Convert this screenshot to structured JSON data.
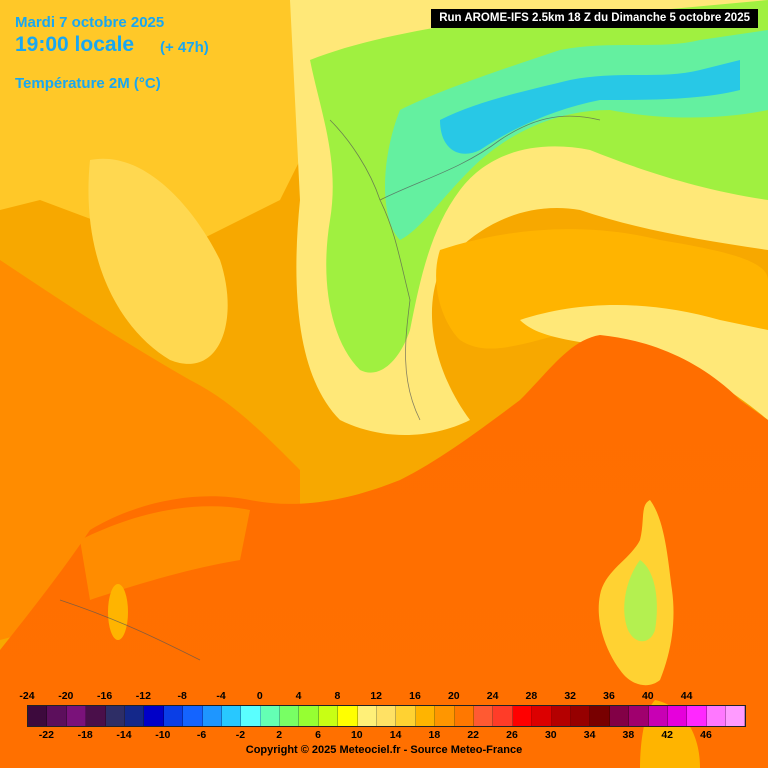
{
  "header": {
    "date": "Mardi 7 octobre 2025",
    "local_time": "19:00 locale",
    "lead_time": "(+ 47h)",
    "parameter": "Température 2M (°C)",
    "run_info": "Run AROME-IFS 2.5km 18 Z du Dimanche 5 octobre 2025"
  },
  "legend": {
    "top_ticks": [
      "-24",
      "-20",
      "-16",
      "-12",
      "-8",
      "-4",
      "0",
      "4",
      "8",
      "12",
      "16",
      "20",
      "24",
      "28",
      "32",
      "36",
      "40",
      "44"
    ],
    "bottom_ticks": [
      "-22",
      "-18",
      "-14",
      "-10",
      "-6",
      "-2",
      "2",
      "6",
      "10",
      "14",
      "18",
      "22",
      "26",
      "30",
      "34",
      "38",
      "42",
      "46"
    ],
    "colors": [
      "#3d0a3d",
      "#5c0f5c",
      "#7a127a",
      "#4a0f4a",
      "#2e2e66",
      "#14288a",
      "#0000c8",
      "#0a3ee6",
      "#1464ff",
      "#1e96ff",
      "#28c8ff",
      "#5affff",
      "#64ffb4",
      "#78ff64",
      "#96ff32",
      "#c8ff14",
      "#ffff00",
      "#fff078",
      "#ffe164",
      "#ffd232",
      "#ffb400",
      "#ff9600",
      "#ff7800",
      "#ff5a32",
      "#ff3c28",
      "#ff0000",
      "#dc0000",
      "#b40000",
      "#960000",
      "#780000",
      "#820046",
      "#a0006e",
      "#c800b4",
      "#e600dc",
      "#ff28ff",
      "#ff78ff",
      "#ff9bff"
    ]
  },
  "footer": {
    "copyright": "Copyright © 2025 Meteociel.fr - Source Meteo-France"
  }
}
